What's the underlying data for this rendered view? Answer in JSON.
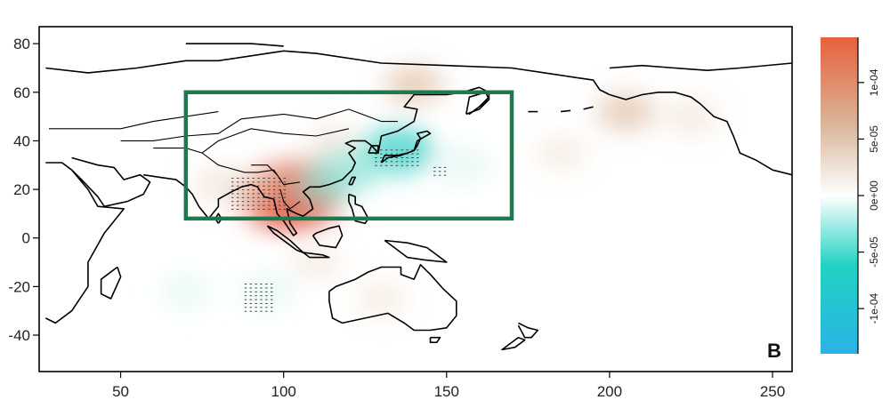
{
  "panel_label": "B",
  "x_axis": {
    "ticks": [
      50,
      100,
      150,
      200,
      250
    ],
    "range": [
      25,
      256
    ]
  },
  "y_axis": {
    "ticks": [
      80,
      60,
      40,
      20,
      0,
      -20,
      -40
    ],
    "range": [
      -55,
      87
    ]
  },
  "region_box": {
    "lon_min": 70,
    "lon_max": 170,
    "lat_min": 8,
    "lat_max": 60,
    "color": "#1e7a4e"
  },
  "colorbar": {
    "tick_labels": [
      "1e-04",
      "5e-05",
      "0e+00",
      "-5e-05",
      "-1e-04"
    ],
    "tick_values": [
      0.0001,
      5e-05,
      0,
      -5e-05,
      -0.0001
    ],
    "range": [
      -0.00014,
      0.00014
    ],
    "colors": [
      "#2ab3e6",
      "#22d2c2",
      "#ffffff",
      "#d9b79a",
      "#e8603c"
    ]
  },
  "chart_data": {
    "type": "heatmap",
    "title": "",
    "xlabel": "",
    "ylabel": "",
    "xlim": [
      25,
      256
    ],
    "ylim": [
      -55,
      87
    ],
    "panel_label": "B",
    "anomaly_blobs": [
      {
        "lon": 102,
        "lat": 17,
        "value": 0.00013
      },
      {
        "lon": 108,
        "lat": 22,
        "value": 8e-05
      },
      {
        "lon": 90,
        "lat": 20,
        "value": 3e-05
      },
      {
        "lon": 80,
        "lat": 22,
        "value": 3e-05
      },
      {
        "lon": 140,
        "lat": 63,
        "value": 4e-05
      },
      {
        "lon": 205,
        "lat": 52,
        "value": 4e-05
      },
      {
        "lon": 225,
        "lat": 50,
        "value": 3e-05
      },
      {
        "lon": 185,
        "lat": 35,
        "value": 2e-05
      },
      {
        "lon": 115,
        "lat": 40,
        "value": 2e-05
      },
      {
        "lon": 135,
        "lat": 36,
        "value": -7e-05
      },
      {
        "lon": 120,
        "lat": 28,
        "value": -6e-05
      },
      {
        "lon": 112,
        "lat": 21,
        "value": -4e-05
      },
      {
        "lon": 155,
        "lat": 30,
        "value": -3e-05
      },
      {
        "lon": 95,
        "lat": -22,
        "value": -3e-05
      },
      {
        "lon": 70,
        "lat": -22,
        "value": -2e-05
      },
      {
        "lon": 130,
        "lat": -25,
        "value": 2e-05
      },
      {
        "lon": 110,
        "lat": -10,
        "value": 2e-05
      }
    ]
  }
}
